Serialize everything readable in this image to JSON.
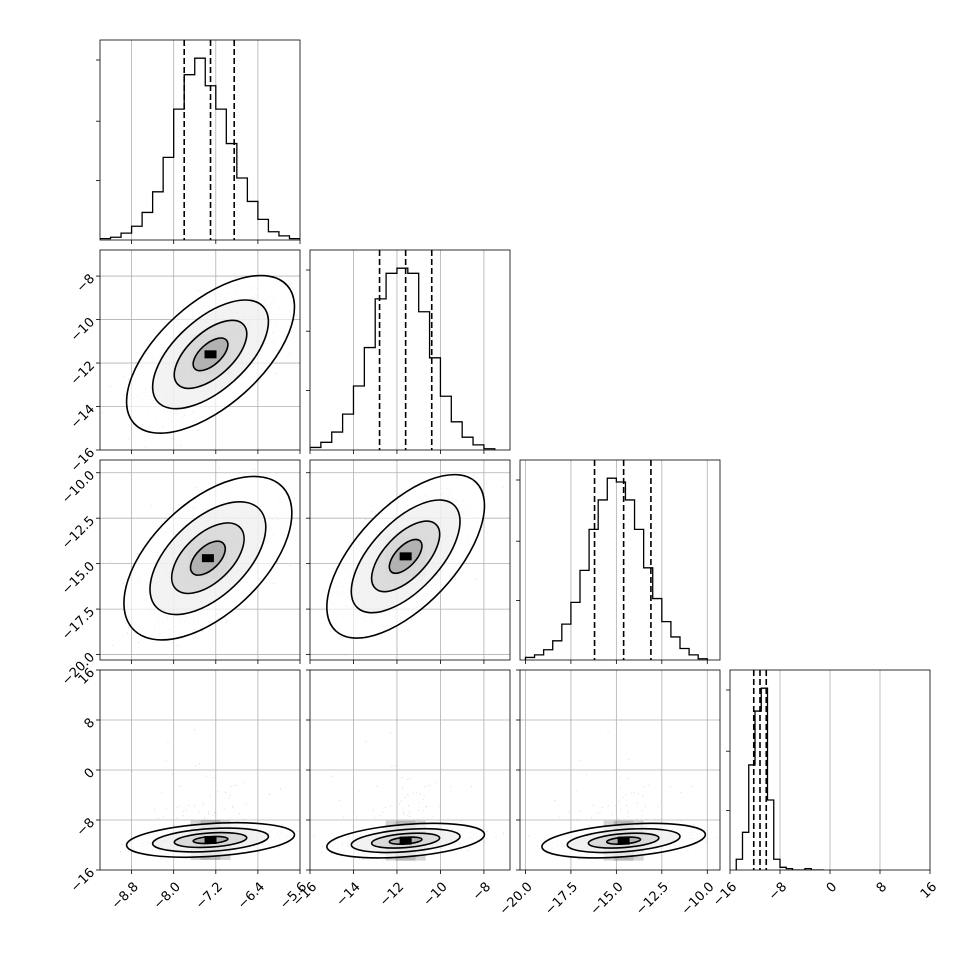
{
  "chart_data": {
    "type": "corner",
    "parameters": [
      {
        "range": [
          -9.4,
          -5.6
        ],
        "ticks": [
          -8.8,
          -8.0,
          -7.2,
          -6.4,
          -5.6
        ],
        "tick_labels": [
          "−8.8",
          "−8.0",
          "−7.2",
          "−6.4",
          "−5.6"
        ]
      },
      {
        "range": [
          -16,
          -6.8
        ],
        "ticks": [
          -16,
          -14,
          -12,
          -10,
          -8
        ],
        "tick_labels": [
          "−16",
          "−14",
          "−12",
          "−10",
          "−8"
        ]
      },
      {
        "range": [
          -20.3,
          -9.3
        ],
        "ticks": [
          -20,
          -17.5,
          -15,
          -12.5,
          -10
        ],
        "tick_labels": [
          "−20.0",
          "−17.5",
          "−15.0",
          "−12.5",
          "−10.0"
        ]
      },
      {
        "range": [
          -16,
          16
        ],
        "ticks": [
          -16,
          -8,
          0,
          8,
          16
        ],
        "tick_labels": [
          "−16",
          "−8",
          "0",
          "8",
          "16"
        ]
      }
    ],
    "quantiles": [
      [
        -7.8,
        -7.3,
        -6.85
      ],
      [
        -12.8,
        -11.6,
        -10.4
      ],
      [
        -16.2,
        -14.6,
        -13.1
      ],
      [
        -12.2,
        -11.2,
        -10.2
      ]
    ],
    "histograms": [
      {
        "bins": [
          -9.4,
          -9.2,
          -9.0,
          -8.8,
          -8.6,
          -8.4,
          -8.2,
          -8.0,
          -7.8,
          -7.6,
          -7.4,
          -7.2,
          -7.0,
          -6.8,
          -6.6,
          -6.4,
          -6.2,
          -6.0,
          -5.8,
          -5.6
        ],
        "counts": [
          1,
          2,
          5,
          10,
          20,
          35,
          60,
          95,
          120,
          132,
          112,
          95,
          70,
          45,
          28,
          15,
          6,
          3,
          1
        ]
      },
      {
        "bins": [
          -16.0,
          -15.5,
          -15.0,
          -14.5,
          -14.0,
          -13.5,
          -13.0,
          -12.5,
          -12.0,
          -11.5,
          -11.0,
          -10.5,
          -10.0,
          -9.5,
          -9.0,
          -8.5,
          -8.0,
          -7.5
        ],
        "counts": [
          2,
          6,
          14,
          28,
          50,
          80,
          118,
          138,
          142,
          138,
          108,
          72,
          42,
          22,
          10,
          4,
          1
        ]
      },
      {
        "bins": [
          -20.0,
          -19.5,
          -19.0,
          -18.5,
          -18.0,
          -17.5,
          -17.0,
          -16.5,
          -16.0,
          -15.5,
          -15.0,
          -14.5,
          -14.0,
          -13.5,
          -13.0,
          -12.5,
          -12.0,
          -11.5,
          -11.0,
          -10.5,
          -10.0
        ],
        "counts": [
          2,
          4,
          8,
          15,
          28,
          45,
          70,
          102,
          125,
          142,
          139,
          125,
          102,
          72,
          48,
          30,
          18,
          9,
          4,
          1
        ]
      },
      {
        "bins": [
          -15.0,
          -14.0,
          -13.0,
          -12.0,
          -11.0,
          -10.0,
          -9.0,
          -8.0,
          -7.0,
          -6.0,
          -5.0,
          -4.0,
          -3.0,
          -2.0,
          -1.0
        ],
        "counts": [
          8,
          28,
          78,
          118,
          135,
          52,
          8,
          2,
          1,
          0,
          0,
          1,
          0,
          0
        ]
      }
    ],
    "correlations": [
      {
        "row": 1,
        "col": 0,
        "mean": [
          -7.3,
          -11.6
        ],
        "sd": [
          0.55,
          1.25
        ],
        "rho": 0.6
      },
      {
        "row": 2,
        "col": 0,
        "mean": [
          -7.35,
          -14.7
        ],
        "sd": [
          0.55,
          1.55
        ],
        "rho": 0.55
      },
      {
        "row": 2,
        "col": 1,
        "mean": [
          -11.6,
          -14.6
        ],
        "sd": [
          1.25,
          1.55
        ],
        "rho": 0.62
      },
      {
        "row": 3,
        "col": 0,
        "mean": [
          -7.3,
          -11.2
        ],
        "sd": [
          0.55,
          0.95
        ],
        "rho": 0.3
      },
      {
        "row": 3,
        "col": 1,
        "mean": [
          -11.6,
          -11.3
        ],
        "sd": [
          1.25,
          0.95
        ],
        "rho": 0.35
      },
      {
        "row": 3,
        "col": 2,
        "mean": [
          -14.6,
          -11.3
        ],
        "sd": [
          1.55,
          0.95
        ],
        "rho": 0.35
      }
    ],
    "grid": true
  }
}
